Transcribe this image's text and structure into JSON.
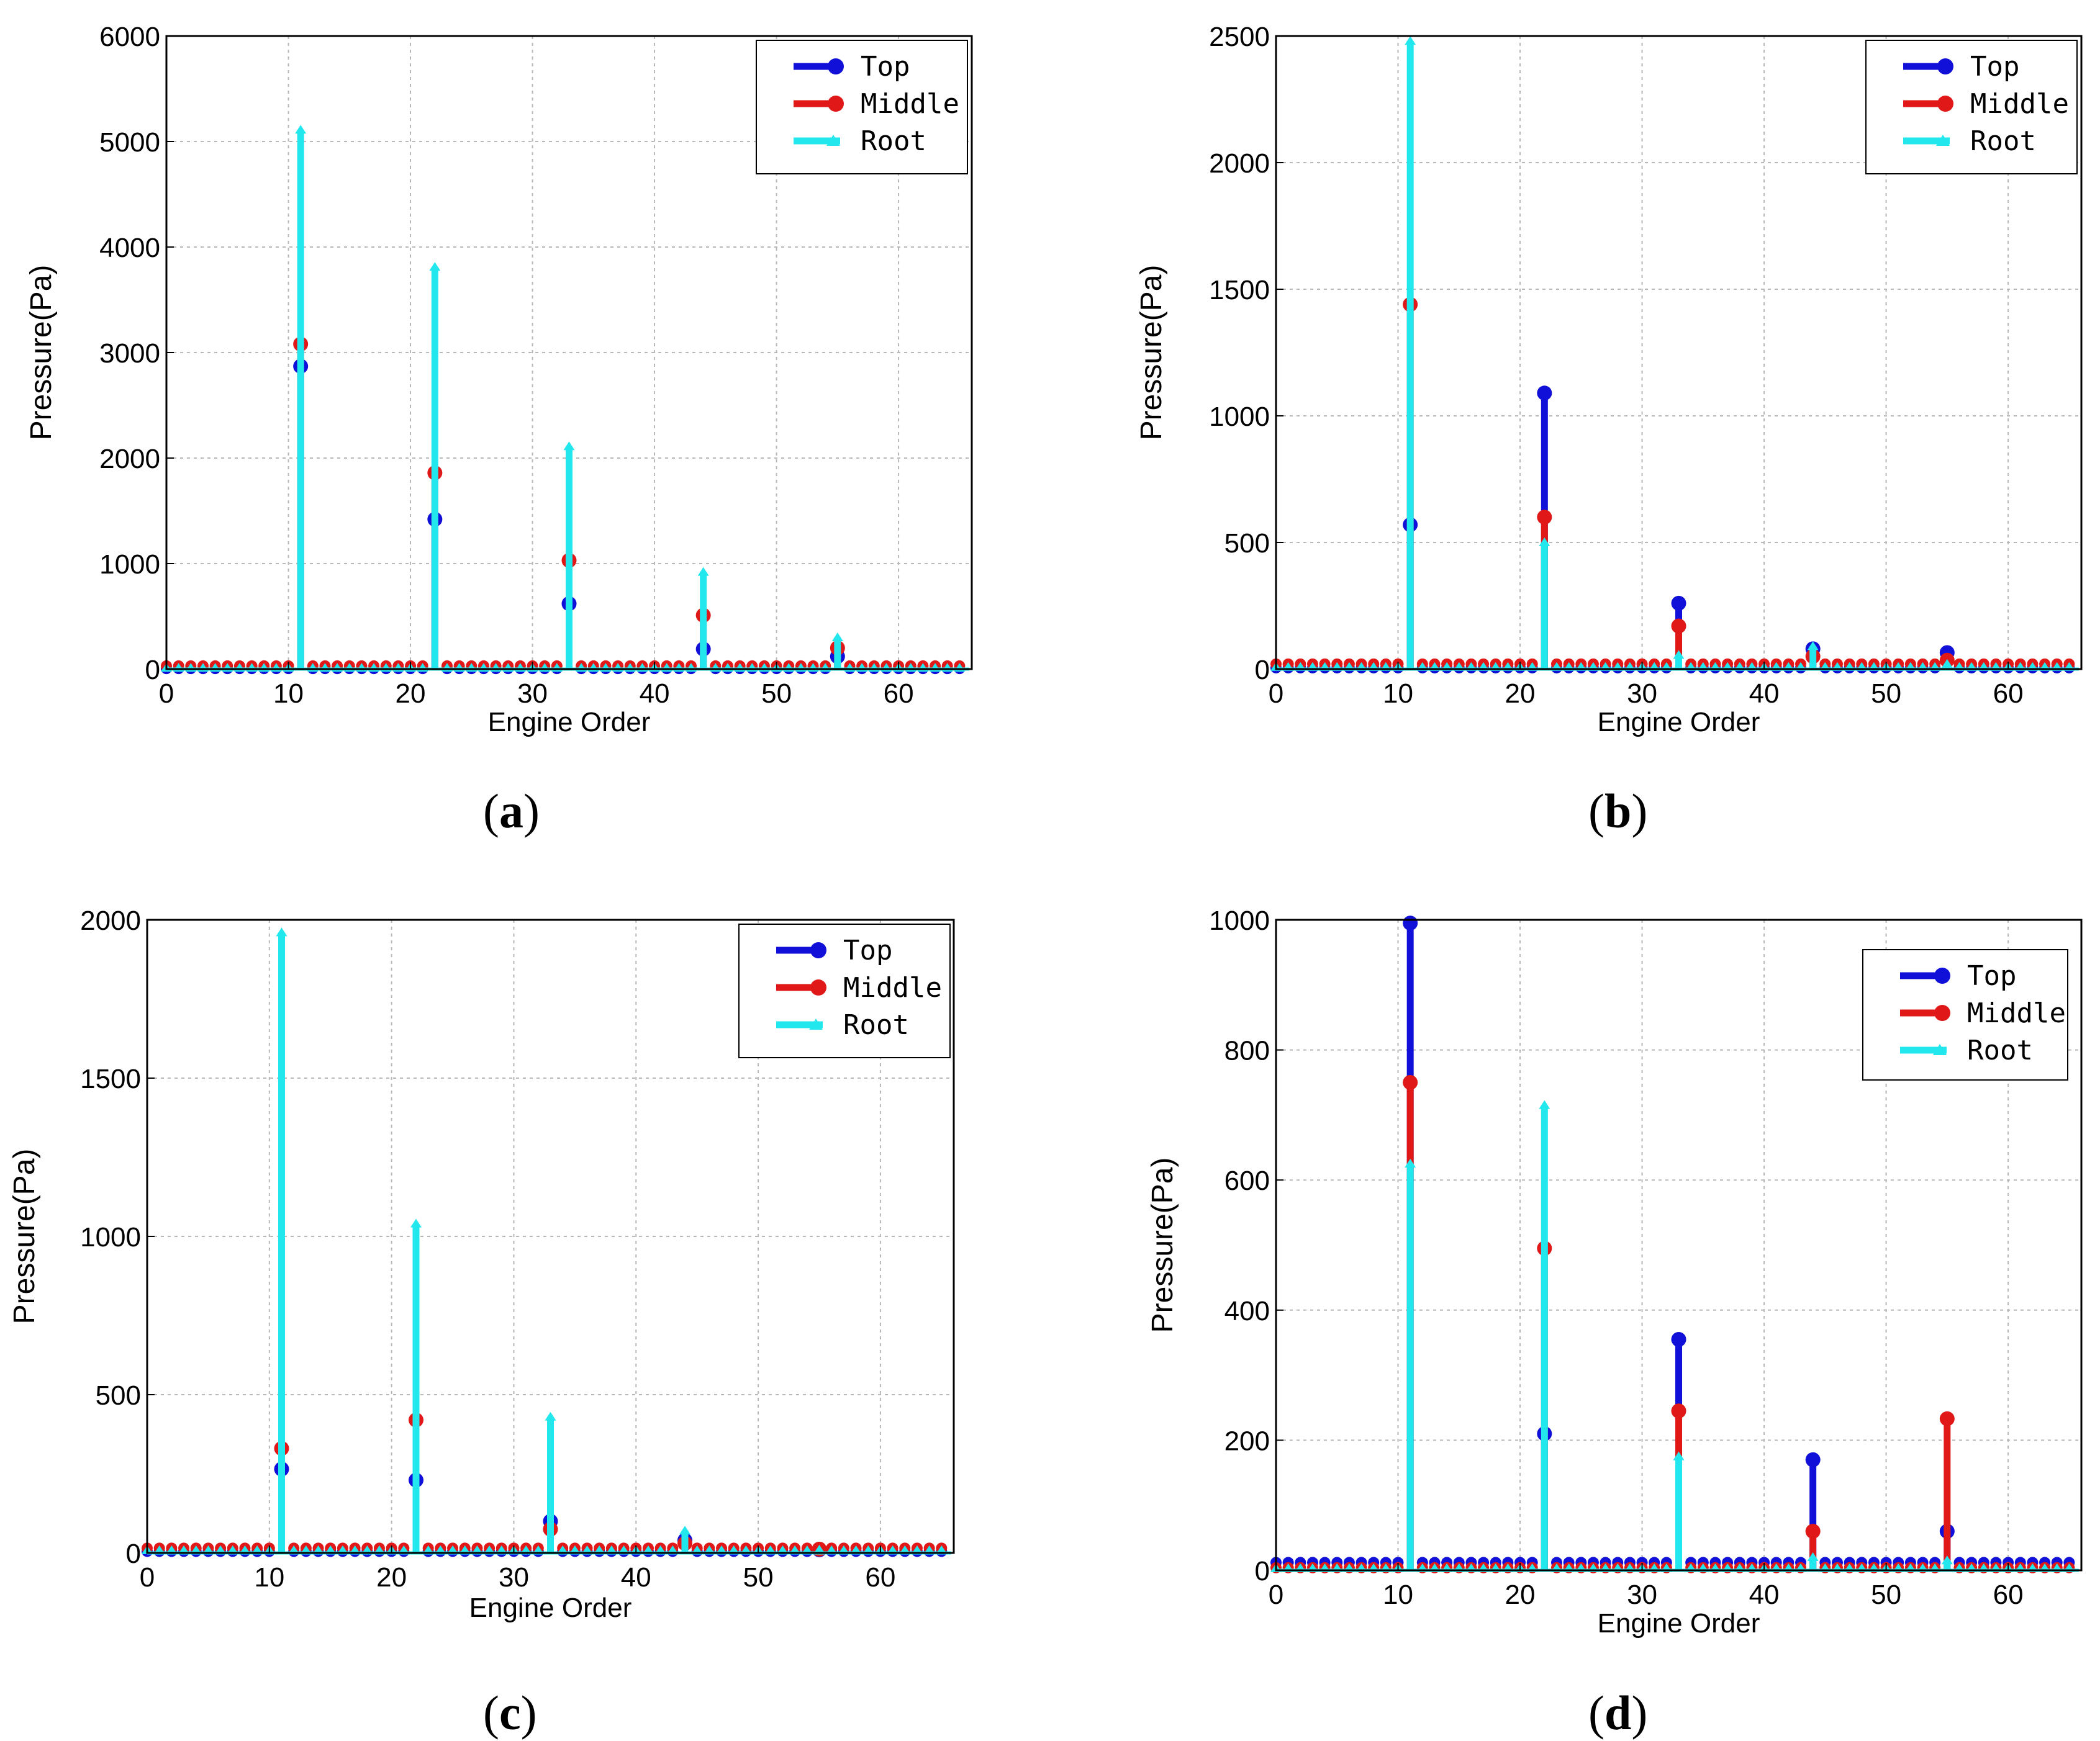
{
  "colors": {
    "top": "#1010d8",
    "middle": "#e01818",
    "root": "#22e8ee",
    "grid": "#b8b8b8",
    "axis": "#000000"
  },
  "panels": [
    {
      "caption_open": "(",
      "caption_letter": "a",
      "caption_close": ")",
      "chart_data": {
        "type": "stem",
        "xlabel": "Engine Order",
        "ylabel": "Pressure(Pa)",
        "xlim": [
          0,
          66
        ],
        "ylim": [
          0,
          6000
        ],
        "xticks": [
          0,
          10,
          20,
          30,
          40,
          50,
          60
        ],
        "yticks": [
          0,
          1000,
          2000,
          3000,
          4000,
          5000,
          6000
        ],
        "legend": {
          "position": "top-right",
          "entries": [
            "Top",
            "Middle",
            "Root"
          ]
        },
        "series": [
          {
            "name": "Top",
            "baseline": 5,
            "peaks": [
              [
                11,
                2870
              ],
              [
                22,
                1420
              ],
              [
                33,
                620
              ],
              [
                44,
                190
              ],
              [
                55,
                120
              ]
            ]
          },
          {
            "name": "Middle",
            "baseline": 30,
            "peaks": [
              [
                11,
                3080
              ],
              [
                22,
                1860
              ],
              [
                33,
                1030
              ],
              [
                44,
                510
              ],
              [
                55,
                200
              ]
            ]
          },
          {
            "name": "Root",
            "baseline": 10,
            "peaks": [
              [
                11,
                5110
              ],
              [
                22,
                3810
              ],
              [
                33,
                2110
              ],
              [
                44,
                920
              ],
              [
                55,
                300
              ]
            ]
          }
        ]
      }
    },
    {
      "caption_open": "(",
      "caption_letter": "b",
      "caption_close": ")",
      "chart_data": {
        "type": "stem",
        "xlabel": "Engine Order",
        "ylabel": "Pressure(Pa)",
        "xlim": [
          0,
          66
        ],
        "ylim": [
          0,
          2500
        ],
        "xticks": [
          0,
          10,
          20,
          30,
          40,
          50,
          60
        ],
        "yticks": [
          0,
          500,
          1000,
          1500,
          2000,
          2500
        ],
        "legend": {
          "position": "top-right",
          "entries": [
            "Top",
            "Middle",
            "Root"
          ]
        },
        "series": [
          {
            "name": "Top",
            "baseline": 5,
            "peaks": [
              [
                11,
                570
              ],
              [
                22,
                1090
              ],
              [
                33,
                260
              ],
              [
                44,
                80
              ],
              [
                55,
                65
              ]
            ]
          },
          {
            "name": "Middle",
            "baseline": 20,
            "peaks": [
              [
                11,
                1440
              ],
              [
                22,
                600
              ],
              [
                33,
                170
              ],
              [
                44,
                50
              ],
              [
                55,
                35
              ]
            ]
          },
          {
            "name": "Root",
            "baseline": 8,
            "peaks": [
              [
                11,
                2480
              ],
              [
                22,
                500
              ],
              [
                33,
                55
              ],
              [
                44,
                90
              ],
              [
                55,
                20
              ]
            ]
          }
        ]
      }
    },
    {
      "caption_open": "(",
      "caption_letter": "c",
      "caption_close": ")",
      "chart_data": {
        "type": "stem",
        "xlabel": "Engine Order",
        "ylabel": "Pressure(Pa)",
        "xlim": [
          0,
          66
        ],
        "ylim": [
          0,
          2000
        ],
        "xticks": [
          0,
          10,
          20,
          30,
          40,
          50,
          60
        ],
        "yticks": [
          0,
          500,
          1000,
          1500,
          2000
        ],
        "legend": {
          "position": "top-right",
          "entries": [
            "Top",
            "Middle",
            "Root"
          ]
        },
        "series": [
          {
            "name": "Top",
            "baseline": 5,
            "peaks": [
              [
                11,
                265
              ],
              [
                22,
                230
              ],
              [
                33,
                100
              ],
              [
                44,
                40
              ],
              [
                55,
                10
              ]
            ]
          },
          {
            "name": "Middle",
            "baseline": 15,
            "peaks": [
              [
                11,
                330
              ],
              [
                22,
                420
              ],
              [
                33,
                75
              ],
              [
                44,
                30
              ],
              [
                55,
                12
              ]
            ]
          },
          {
            "name": "Root",
            "baseline": 8,
            "peaks": [
              [
                11,
                1960
              ],
              [
                22,
                1040
              ],
              [
                33,
                430
              ],
              [
                44,
                70
              ],
              [
                55,
                10
              ]
            ]
          }
        ]
      }
    },
    {
      "caption_open": "(",
      "caption_letter": "d",
      "caption_close": ")",
      "chart_data": {
        "type": "stem",
        "xlabel": "Engine Order",
        "ylabel": "Pressure(Pa)",
        "xlim": [
          0,
          66
        ],
        "ylim": [
          0,
          1000
        ],
        "xticks": [
          0,
          10,
          20,
          30,
          40,
          50,
          60
        ],
        "yticks": [
          0,
          200,
          400,
          600,
          800,
          1000
        ],
        "legend": {
          "position": "top-right",
          "entries": [
            "Top",
            "Middle",
            "Root"
          ]
        },
        "series": [
          {
            "name": "Top",
            "baseline": 12,
            "peaks": [
              [
                11,
                995
              ],
              [
                22,
                210
              ],
              [
                33,
                355
              ],
              [
                44,
                170
              ],
              [
                55,
                60
              ]
            ]
          },
          {
            "name": "Middle",
            "baseline": 4,
            "peaks": [
              [
                11,
                750
              ],
              [
                22,
                495
              ],
              [
                33,
                245
              ],
              [
                44,
                60
              ],
              [
                55,
                233
              ]
            ]
          },
          {
            "name": "Root",
            "baseline": 3,
            "peaks": [
              [
                11,
                625
              ],
              [
                22,
                715
              ],
              [
                33,
                175
              ],
              [
                44,
                20
              ],
              [
                55,
                15
              ]
            ]
          }
        ]
      }
    }
  ]
}
